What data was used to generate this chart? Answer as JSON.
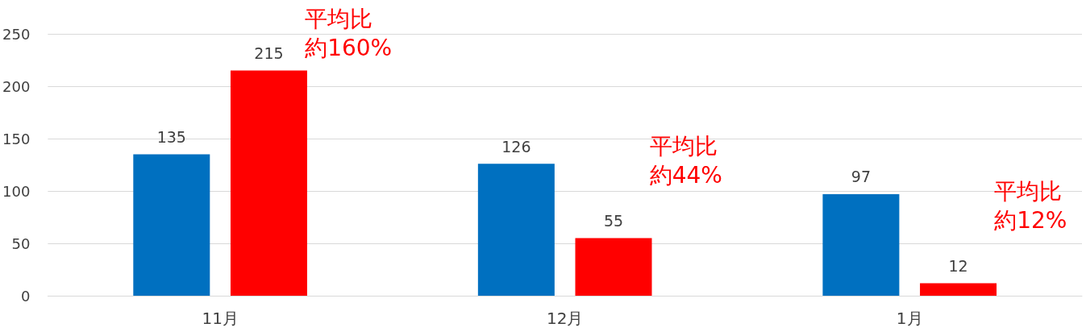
{
  "chart_data": {
    "type": "bar",
    "categories": [
      "11月",
      "12月",
      "1月"
    ],
    "series": [
      {
        "color": "#0070c0",
        "values": [
          135,
          126,
          97
        ]
      },
      {
        "color": "#ff0000",
        "values": [
          215,
          55,
          12
        ]
      }
    ],
    "ylim": [
      0,
      250
    ],
    "yticks": [
      0,
      50,
      100,
      150,
      200,
      250
    ],
    "grid": "y",
    "data_labels": true,
    "annotations": [
      "平均比約160%",
      "平均比約44%",
      "平均比約12%"
    ]
  }
}
